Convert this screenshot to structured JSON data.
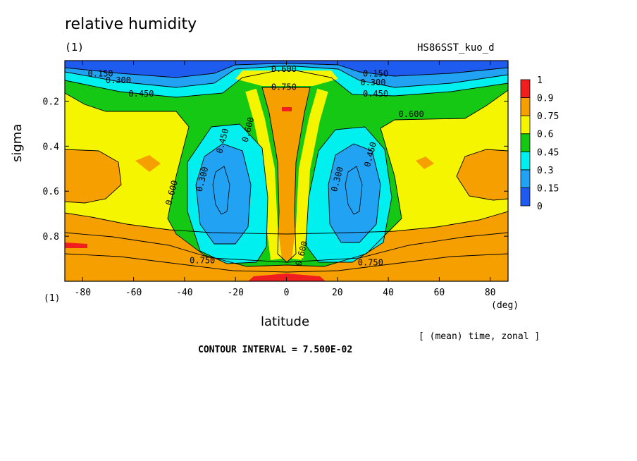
{
  "header": {
    "title": "relative humidity",
    "units_left": "(1)",
    "run_name": "HS86SST_kuo_d"
  },
  "footer": {
    "mean_note": "[ (mean) time, zonal ]",
    "contour_interval": "CONTOUR INTERVAL = 7.500E-02",
    "x_units_left": "(1)",
    "x_units_right": "(deg)"
  },
  "chart_data": {
    "type": "heatmap",
    "title": "relative humidity",
    "xlabel": "latitude",
    "ylabel": "sigma",
    "xlim": [
      -87,
      87
    ],
    "ylim": [
      0.02,
      1.0
    ],
    "y_inverted": true,
    "x_ticks": [
      -80,
      -60,
      -40,
      -20,
      0,
      20,
      40,
      60,
      80
    ],
    "x_tick_labels": [
      "-80",
      "-60",
      "-40",
      "-20",
      "0",
      "20",
      "40",
      "60",
      "80"
    ],
    "y_ticks": [
      0.2,
      0.4,
      0.6,
      0.8
    ],
    "y_tick_labels": [
      "0.2",
      "0.4",
      "0.6",
      "0.8"
    ],
    "contour_interval": 0.075,
    "colorbar": {
      "levels": [
        0,
        0.15,
        0.3,
        0.45,
        0.6,
        0.75,
        0.9,
        1
      ],
      "labels": [
        "0",
        "0.15",
        "0.3",
        "0.45",
        "0.6",
        "0.75",
        "0.9",
        "1"
      ],
      "colors": [
        "#1e5cf0",
        "#22a2f2",
        "#00f0f0",
        "#14c814",
        "#f5f500",
        "#f5a000",
        "#f01e1e"
      ]
    },
    "contour_labels": [
      {
        "text": "0.150",
        "lat": -73,
        "sigma": 0.09
      },
      {
        "text": "0.300",
        "lat": -66,
        "sigma": 0.12
      },
      {
        "text": "0.450",
        "lat": -57,
        "sigma": 0.18
      },
      {
        "text": "0.600",
        "lat": -1,
        "sigma": 0.07
      },
      {
        "text": "0.750",
        "lat": -1,
        "sigma": 0.15
      },
      {
        "text": "0.150",
        "lat": 35,
        "sigma": 0.09
      },
      {
        "text": "0.300",
        "lat": 34,
        "sigma": 0.13
      },
      {
        "text": "0.450",
        "lat": 35,
        "sigma": 0.18
      },
      {
        "text": "0.600",
        "lat": 49,
        "sigma": 0.27
      },
      {
        "text": "0.450",
        "lat": -24,
        "sigma": 0.38
      },
      {
        "text": "0.600",
        "lat": -14,
        "sigma": 0.33
      },
      {
        "text": "0.300",
        "lat": -32,
        "sigma": 0.55
      },
      {
        "text": "0.600",
        "lat": -44,
        "sigma": 0.61
      },
      {
        "text": "0.300",
        "lat": 21,
        "sigma": 0.55
      },
      {
        "text": "0.450",
        "lat": 34,
        "sigma": 0.44
      },
      {
        "text": "0.600",
        "lat": 7,
        "sigma": 0.88
      },
      {
        "text": "0.750",
        "lat": -33,
        "sigma": 0.92
      },
      {
        "text": "0.750",
        "lat": 33,
        "sigma": 0.93
      }
    ]
  }
}
